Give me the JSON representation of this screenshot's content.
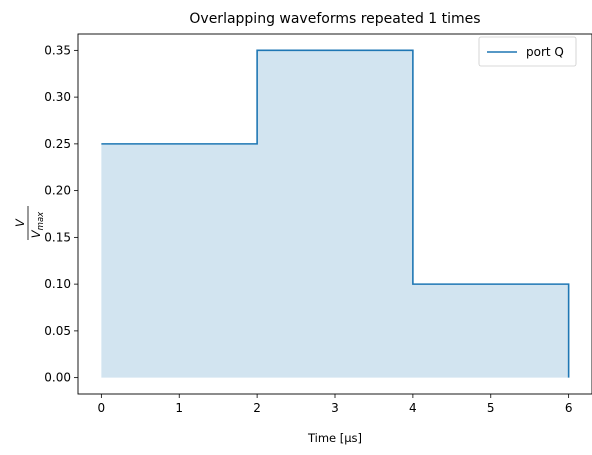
{
  "chart_data": {
    "type": "area",
    "title": "Overlapping waveforms repeated 1 times",
    "xlabel": "Time [µs]",
    "ylabel": {
      "numerator": "V",
      "denominator": "V",
      "denominator_subscript": "max"
    },
    "xlim": [
      -0.3,
      6.3
    ],
    "ylim": [
      -0.0175,
      0.3675
    ],
    "xticks": [
      0,
      1,
      2,
      3,
      4,
      5,
      6
    ],
    "yticks": [
      0.0,
      0.05,
      0.1,
      0.15,
      0.2,
      0.25,
      0.3,
      0.35
    ],
    "ytick_labels": [
      "0.00",
      "0.05",
      "0.10",
      "0.15",
      "0.20",
      "0.25",
      "0.30",
      "0.35"
    ],
    "grid": false,
    "legend_position": "top-right",
    "series": [
      {
        "name": "port Q",
        "color": "#1f77b4",
        "step": true,
        "x": [
          0,
          2,
          2,
          4,
          4,
          6,
          6
        ],
        "y": [
          0.25,
          0.25,
          0.35,
          0.35,
          0.1,
          0.1,
          0.0
        ]
      }
    ]
  }
}
